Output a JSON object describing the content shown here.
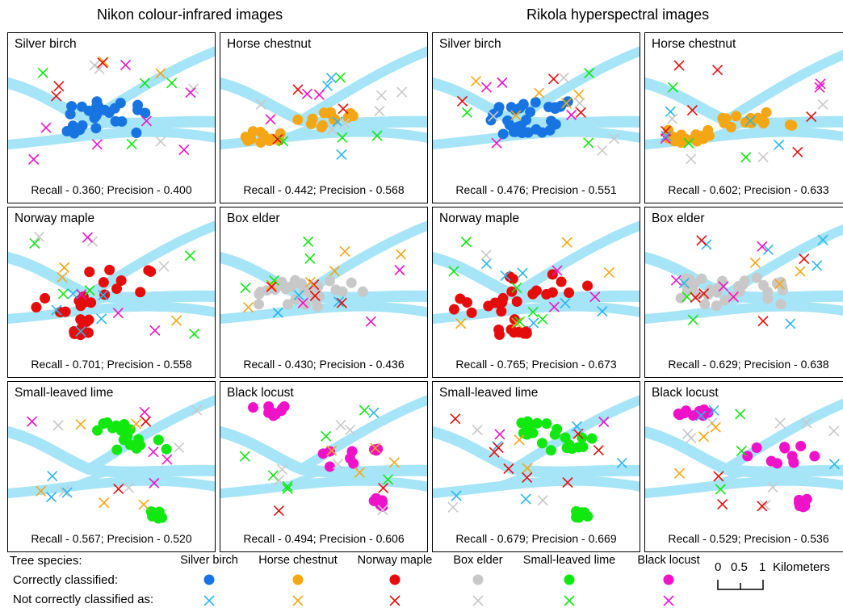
{
  "headings": {
    "nikon": "Nikon colour-infrared images",
    "rikola": "Rikola hyperspectral images"
  },
  "colors": {
    "river": "#a6e4f7",
    "Silver birch": "#1874e0",
    "Horse chestnut": "#f5a614",
    "Norway maple": "#e50c0c",
    "Box elder": "#c8c8c8",
    "Small-leaved lime": "#10e810",
    "Black locust": "#f012c8",
    "cross_Silver birch": "#29b6ee"
  },
  "panels": [
    {
      "title": "Silver birch",
      "stats": "Recall - 0.360; Precision - 0.400"
    },
    {
      "title": "Horse chestnut",
      "stats": "Recall - 0.442; Precision - 0.568"
    },
    {
      "title": "Silver birch",
      "stats": "Recall - 0.476; Precision - 0.551"
    },
    {
      "title": "Horse chestnut",
      "stats": "Recall - 0.602; Precision - 0.633"
    },
    {
      "title": "Norway maple",
      "stats": "Recall - 0.701; Precision - 0.558"
    },
    {
      "title": "Box elder",
      "stats": "Recall - 0.430; Precision - 0.436"
    },
    {
      "title": "Norway maple",
      "stats": "Recall - 0.765; Precision - 0.673"
    },
    {
      "title": "Box elder",
      "stats": "Recall - 0.629; Precision - 0.638"
    },
    {
      "title": "Small-leaved lime",
      "stats": "Recall - 0.567; Precision - 0.520"
    },
    {
      "title": "Black locust",
      "stats": "Recall - 0.494; Precision - 0.606"
    },
    {
      "title": "Small-leaved lime",
      "stats": "Recall - 0.679; Precision - 0.669"
    },
    {
      "title": "Black locust",
      "stats": "Recall - 0.529; Precision - 0.536"
    }
  ],
  "legend": {
    "tree_species": "Tree species:",
    "correct": "Correctly classified:",
    "incorrect": "Not correctly classified as:",
    "species": [
      "Silver birch",
      "Horse chestnut",
      "Norway maple",
      "Box elder",
      "Small-leaved lime",
      "Black locust"
    ]
  },
  "scale_bar": {
    "ticks": [
      "0",
      "0.5",
      "1"
    ],
    "unit": "Kilometers"
  }
}
